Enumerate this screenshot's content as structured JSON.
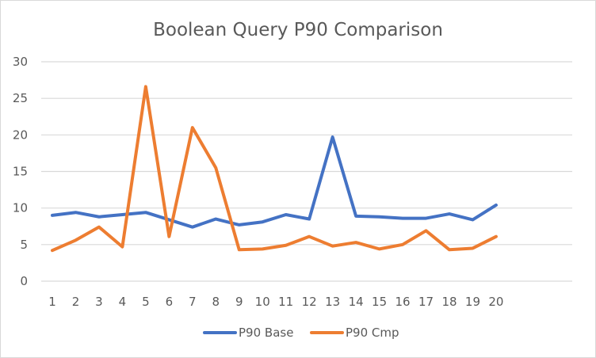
{
  "chart_data": {
    "type": "line",
    "title": "Boolean Query P90 Comparison",
    "xlabel": "",
    "ylabel": "",
    "categories": [
      "1",
      "2",
      "3",
      "4",
      "5",
      "6",
      "7",
      "8",
      "9",
      "10",
      "11",
      "12",
      "13",
      "14",
      "15",
      "16",
      "17",
      "18",
      "19",
      "20"
    ],
    "ylim": [
      0,
      30
    ],
    "yticks": [
      0,
      5,
      10,
      15,
      20,
      25,
      30
    ],
    "grid": true,
    "legend": "bottom",
    "series": [
      {
        "name": "P90 Base",
        "color": "#4472c4",
        "values": [
          9.0,
          9.4,
          8.8,
          9.1,
          9.4,
          8.4,
          7.4,
          8.5,
          7.7,
          8.1,
          9.1,
          8.5,
          19.7,
          8.9,
          8.8,
          8.6,
          8.6,
          9.2,
          8.4,
          10.4
        ]
      },
      {
        "name": "P90 Cmp",
        "color": "#ed7d31",
        "values": [
          4.2,
          5.6,
          7.4,
          4.7,
          26.6,
          6.1,
          21.0,
          15.5,
          4.3,
          4.4,
          4.9,
          6.1,
          4.8,
          5.3,
          4.4,
          5.0,
          6.9,
          4.3,
          4.5,
          6.1
        ]
      }
    ]
  }
}
